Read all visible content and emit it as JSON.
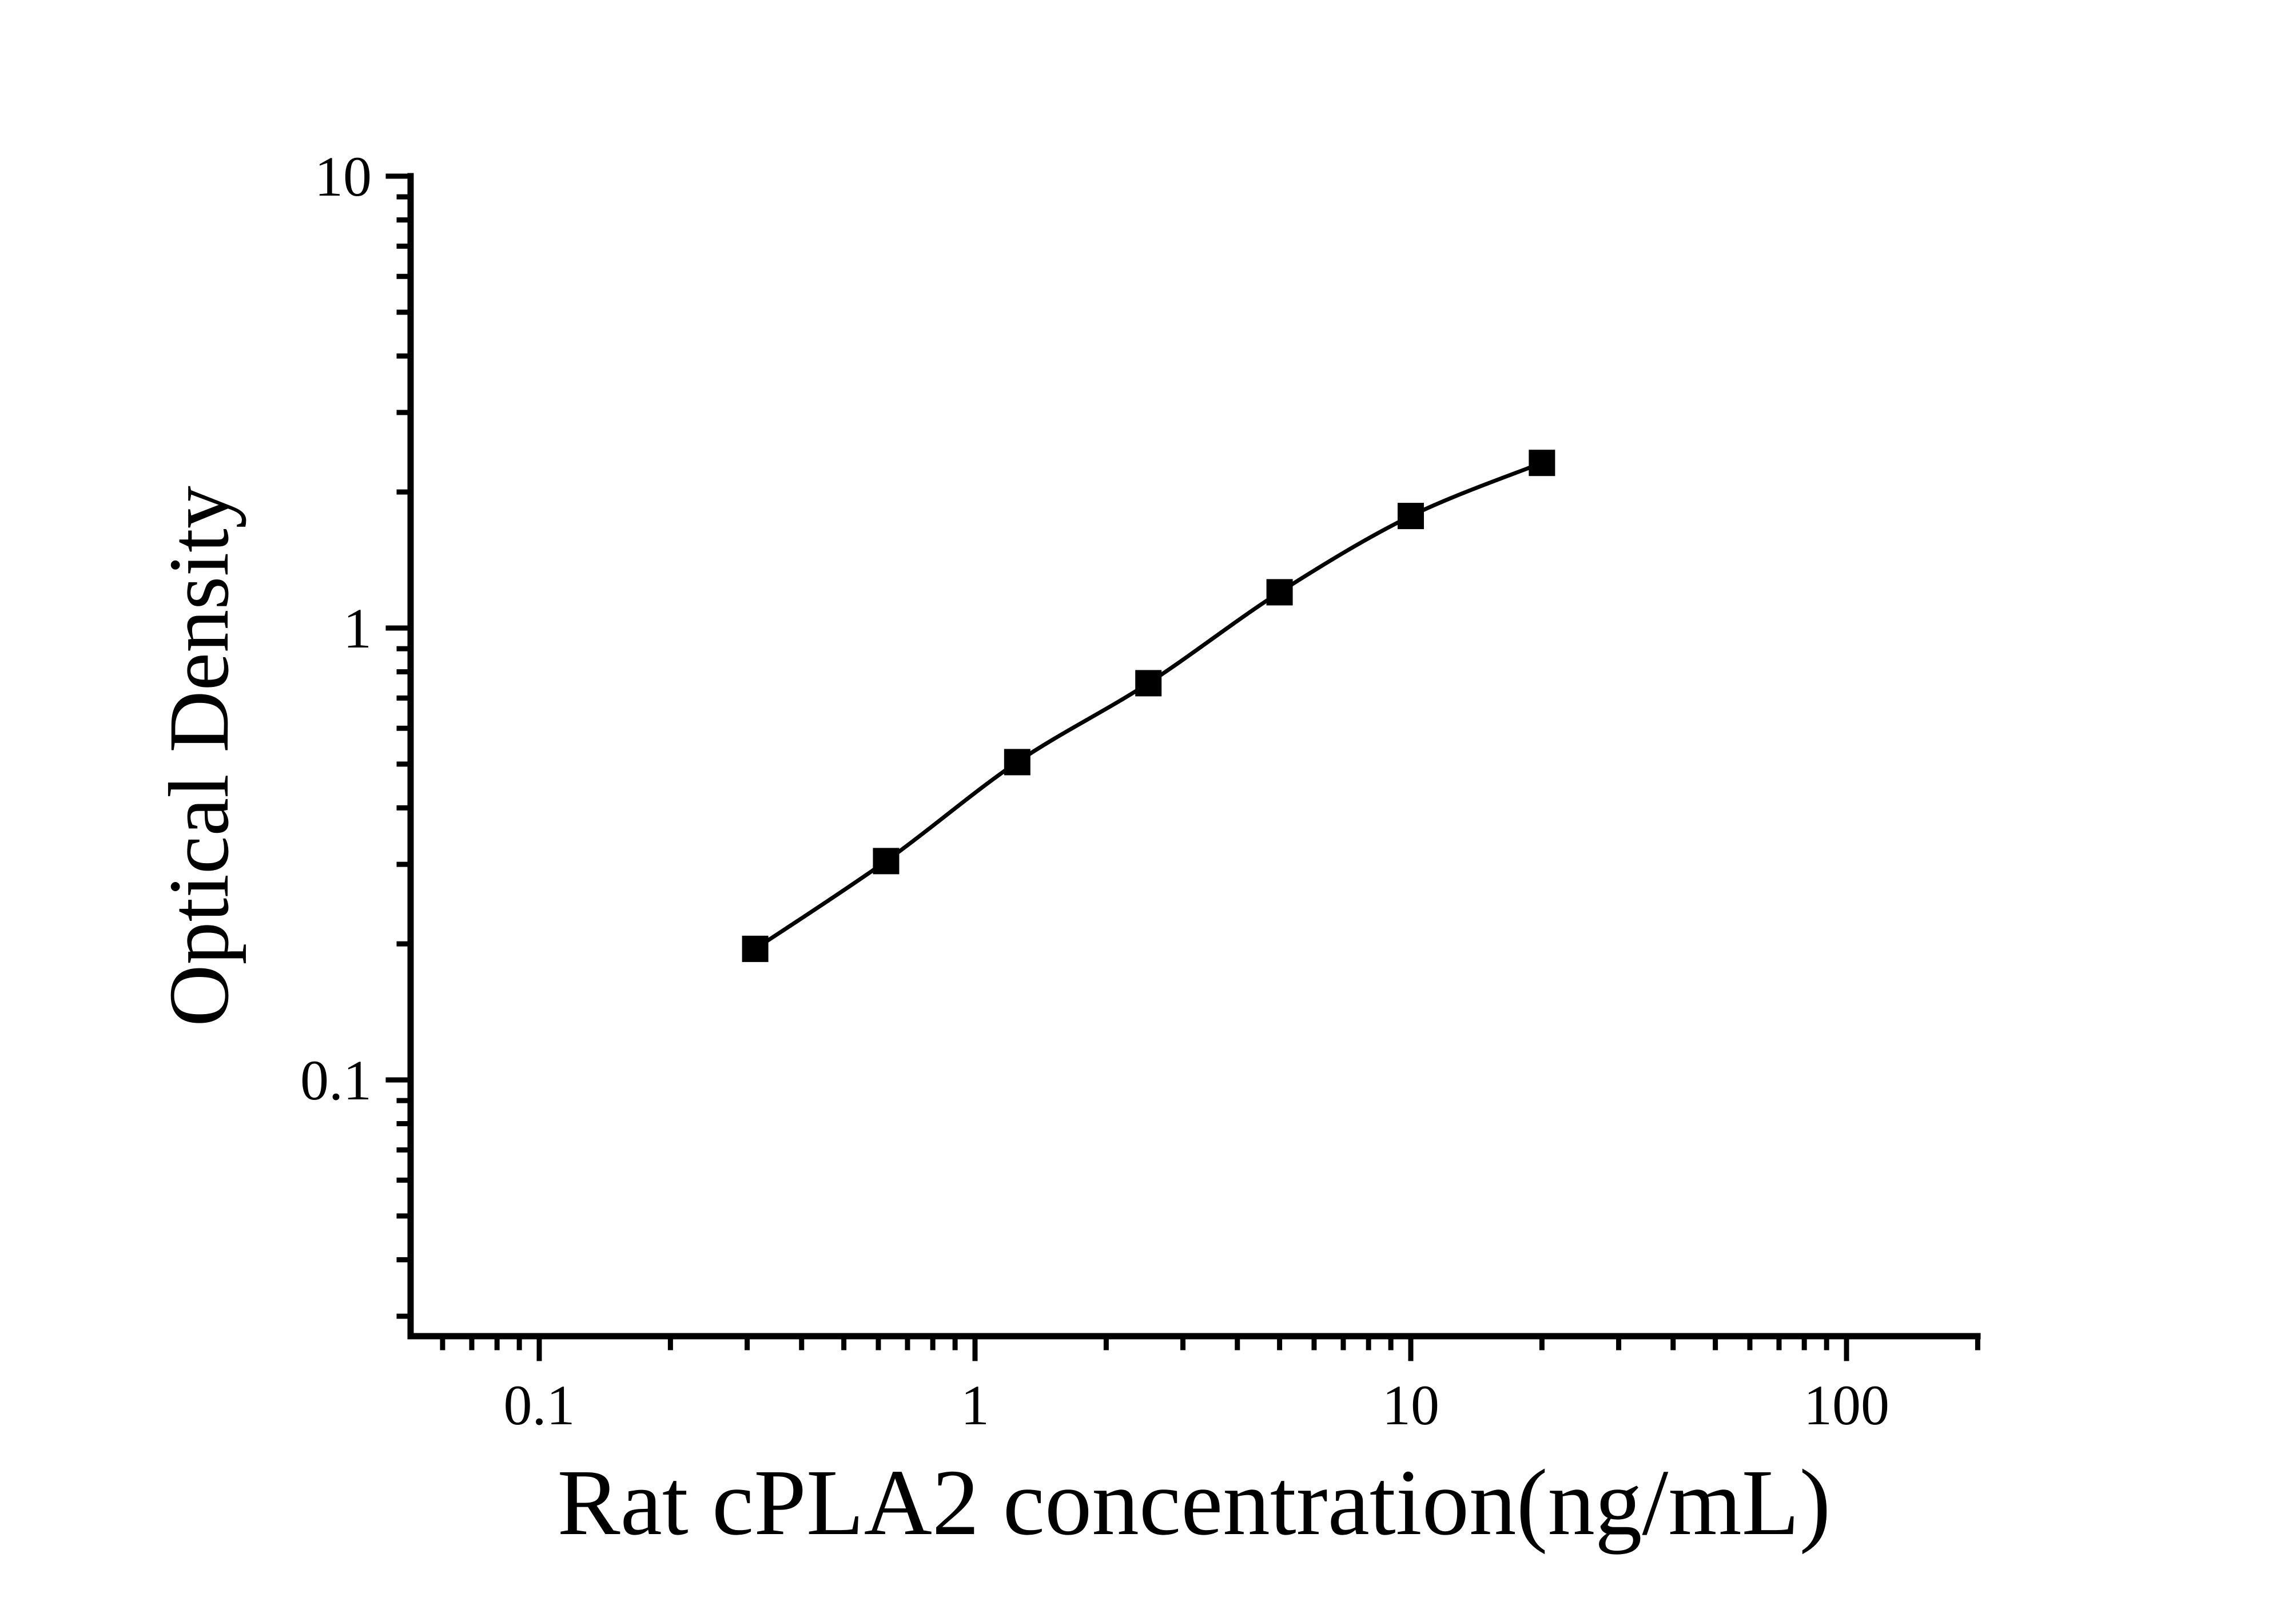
{
  "figure": {
    "background_color": "#ffffff",
    "ink_color": "#000000"
  },
  "chart_data": {
    "type": "line",
    "subtype": "scatter-with-smooth-curve",
    "title": "",
    "xlabel": "Rat cPLA2 concentration(ng/mL)",
    "ylabel": "Optical Density",
    "x_scale": "log",
    "y_scale": "log",
    "xlim": [
      0.05,
      200
    ],
    "ylim": [
      0.027,
      10
    ],
    "grid": false,
    "legend_position": "none",
    "marker_style": "filled-square",
    "x_major_ticks": [
      0.1,
      1,
      10,
      100
    ],
    "x_major_tick_labels": [
      "0.1",
      "1",
      "10",
      "100"
    ],
    "y_major_ticks": [
      10,
      1,
      0.1
    ],
    "y_major_tick_labels": [
      "10",
      "1",
      "0.1"
    ],
    "series": [
      {
        "name": "standard-curve",
        "x": [
          0.313,
          0.625,
          1.25,
          2.5,
          5,
          10,
          20
        ],
        "y": [
          0.195,
          0.305,
          0.505,
          0.755,
          1.2,
          1.77,
          2.32
        ]
      }
    ]
  }
}
